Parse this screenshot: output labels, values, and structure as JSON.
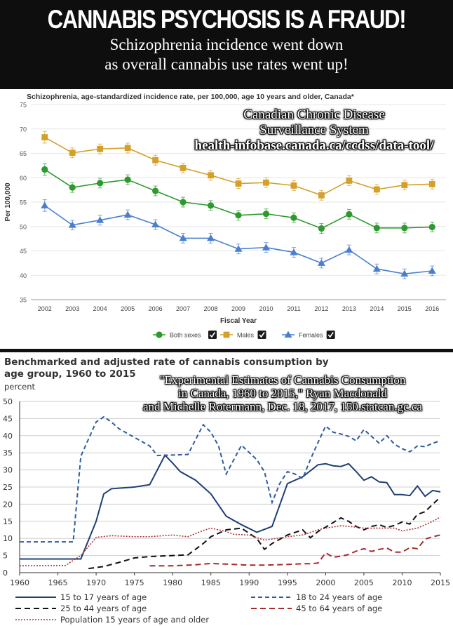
{
  "banner": {
    "headline": "CANNABIS PSYCHOSIS IS A FRAUD!",
    "subline_1": "Schizophrenia incidence went down",
    "subline_2": "as overall cannabis use rates went up!",
    "background": "#0e0e0e"
  },
  "chart1": {
    "source_caption_1": "Canadian Chronic Disease",
    "source_caption_2": "Surveillance System",
    "source_caption_3": "health-infobase.canada.ca/ccdss/data-tool/"
  },
  "chart2": {
    "source_caption_1": "\"Experimental Estimates of Cannabis Consumption",
    "source_caption_2": "in Canada, 1960 to 2015,\" Ryan Macdonald",
    "source_caption_3": "and Michelle Rotermann, Dec. 18, 2017, 150.statcan.gc.ca"
  },
  "chart_data": [
    {
      "type": "line",
      "title": "Schizophrenia, age-standardized incidence rate, per 100,000, age 10 years and older, Canada*",
      "xlabel": "Fiscal Year",
      "ylabel": "Per 100,000",
      "ylim": [
        35,
        75
      ],
      "yticks": [
        35,
        40,
        45,
        50,
        55,
        60,
        65,
        70,
        75
      ],
      "x": [
        "2002",
        "2003",
        "2004",
        "2005",
        "2006",
        "2007",
        "2008",
        "2009",
        "2010",
        "2011",
        "2012",
        "2013",
        "2014",
        "2015",
        "2016"
      ],
      "grid": "horizontal",
      "legend_position": "bottom",
      "series": [
        {
          "name": "Both sexes",
          "color": "#2e9a2e",
          "marker": "circle",
          "values": [
            61.7,
            58.0,
            58.9,
            59.6,
            57.3,
            55.0,
            54.3,
            52.3,
            52.6,
            51.8,
            49.6,
            52.5,
            49.7,
            49.7,
            49.9
          ]
        },
        {
          "name": "Males",
          "color": "#d4a02a",
          "marker": "square",
          "values": [
            68.3,
            65.1,
            65.9,
            66.1,
            63.6,
            62.0,
            60.5,
            58.8,
            59.0,
            58.4,
            56.4,
            59.4,
            57.6,
            58.5,
            58.7
          ]
        },
        {
          "name": "Females",
          "color": "#4a7fcf",
          "marker": "triangle",
          "values": [
            54.3,
            50.3,
            51.3,
            52.4,
            50.4,
            47.6,
            47.6,
            45.4,
            45.7,
            44.7,
            42.5,
            45.2,
            41.3,
            40.3,
            40.9
          ]
        }
      ],
      "error_half_width": [
        1.2,
        1.0,
        1.0,
        1.0,
        1.0,
        1.0,
        1.0,
        1.0,
        1.0,
        1.0,
        1.0,
        1.0,
        1.0,
        1.0,
        1.0
      ]
    },
    {
      "type": "line",
      "title": "Benchmarked and adjusted rate of cannabis consumption by age group, 1960 to 2015",
      "ylabel": "percent",
      "xlabel": "",
      "xlim": [
        1960,
        2015
      ],
      "ylim": [
        0,
        50
      ],
      "xticks": [
        1960,
        1965,
        1970,
        1975,
        1980,
        1985,
        1990,
        1995,
        2000,
        2005,
        2010,
        2015
      ],
      "yticks": [
        0,
        5,
        10,
        15,
        20,
        25,
        30,
        35,
        40,
        45,
        50
      ],
      "grid": "horizontal",
      "legend_position": "bottom",
      "series": [
        {
          "name": "15 to 17 years of age",
          "style": "solid",
          "color": "#1f3f73",
          "points": [
            [
              1960,
              4
            ],
            [
              1968,
              4
            ],
            [
              1970,
              15
            ],
            [
              1971,
              23
            ],
            [
              1972,
              24.5
            ],
            [
              1975,
              25
            ],
            [
              1977,
              25.7
            ],
            [
              1979,
              34.3
            ],
            [
              1980,
              32
            ],
            [
              1981,
              29.5
            ],
            [
              1983,
              27
            ],
            [
              1984,
              25
            ],
            [
              1985,
              23
            ],
            [
              1987,
              16.5
            ],
            [
              1989,
              14
            ],
            [
              1991,
              11.8
            ],
            [
              1993,
              13.5
            ],
            [
              1995,
              26
            ],
            [
              1997,
              28
            ],
            [
              1999,
              31.5
            ],
            [
              2000,
              31.8
            ],
            [
              2001,
              31.2
            ],
            [
              2002,
              31
            ],
            [
              2003,
              31.8
            ],
            [
              2004,
              29.5
            ],
            [
              2005,
              27
            ],
            [
              2006,
              28
            ],
            [
              2007,
              26.5
            ],
            [
              2008,
              26.3
            ],
            [
              2009,
              22.8
            ],
            [
              2010,
              22.8
            ],
            [
              2011,
              22.5
            ],
            [
              2012,
              25.3
            ],
            [
              2013,
              22.3
            ],
            [
              2014,
              24
            ],
            [
              2015,
              23.6
            ]
          ]
        },
        {
          "name": "18 to 24 years of age",
          "style": "dash-dot",
          "color": "#2e5d9e",
          "points": [
            [
              1960,
              9
            ],
            [
              1967,
              9
            ],
            [
              1968,
              34
            ],
            [
              1970,
              44
            ],
            [
              1971,
              45.5
            ],
            [
              1972,
              44
            ],
            [
              1973,
              42
            ],
            [
              1975,
              39.5
            ],
            [
              1977,
              37
            ],
            [
              1978,
              34.2
            ],
            [
              1982,
              34.5
            ],
            [
              1984,
              43.2
            ],
            [
              1985,
              41
            ],
            [
              1986,
              37
            ],
            [
              1987,
              28.8
            ],
            [
              1988,
              33
            ],
            [
              1989,
              37.2
            ],
            [
              1991,
              33
            ],
            [
              1992,
              29.5
            ],
            [
              1993,
              20.5
            ],
            [
              1994,
              26
            ],
            [
              1995,
              29.5
            ],
            [
              1996,
              28.8
            ],
            [
              1997,
              27.5
            ],
            [
              1998,
              33
            ],
            [
              1999,
              38
            ],
            [
              2000,
              42.8
            ],
            [
              2001,
              41
            ],
            [
              2002,
              40.5
            ],
            [
              2003,
              39.8
            ],
            [
              2004,
              38.5
            ],
            [
              2005,
              41.8
            ],
            [
              2006,
              39.8
            ],
            [
              2007,
              37.8
            ],
            [
              2008,
              40
            ],
            [
              2009,
              37.5
            ],
            [
              2010,
              36.2
            ],
            [
              2011,
              35.3
            ],
            [
              2012,
              37
            ],
            [
              2013,
              36.8
            ],
            [
              2014,
              37.8
            ],
            [
              2015,
              38.5
            ]
          ]
        },
        {
          "name": "25 to 44 years of age",
          "style": "dashed",
          "color": "#111111",
          "points": [
            [
              1969,
              1.2
            ],
            [
              1971,
              1.8
            ],
            [
              1973,
              3
            ],
            [
              1975,
              4.3
            ],
            [
              1977,
              4.7
            ],
            [
              1980,
              5
            ],
            [
              1982,
              5.2
            ],
            [
              1984,
              8.5
            ],
            [
              1985,
              10.5
            ],
            [
              1987,
              12.5
            ],
            [
              1989,
              13
            ],
            [
              1991,
              10
            ],
            [
              1992,
              6.8
            ],
            [
              1993,
              8.5
            ],
            [
              1995,
              11
            ],
            [
              1997,
              12.5
            ],
            [
              1998,
              10.2
            ],
            [
              1999,
              12
            ],
            [
              2000,
              13.3
            ],
            [
              2002,
              16
            ],
            [
              2003,
              15
            ],
            [
              2004,
              13.5
            ],
            [
              2005,
              12.5
            ],
            [
              2006,
              13.5
            ],
            [
              2007,
              14
            ],
            [
              2008,
              13.2
            ],
            [
              2009,
              13.8
            ],
            [
              2010,
              14.8
            ],
            [
              2011,
              14.2
            ],
            [
              2012,
              17
            ],
            [
              2013,
              17.8
            ],
            [
              2014,
              20
            ],
            [
              2015,
              22
            ]
          ]
        },
        {
          "name": "45 to 64 years of age",
          "style": "dashed",
          "color": "#a52a2a",
          "points": [
            [
              1977,
              2
            ],
            [
              1980,
              2
            ],
            [
              1983,
              2.3
            ],
            [
              1985,
              2.7
            ],
            [
              1987,
              2.5
            ],
            [
              1990,
              2.2
            ],
            [
              1992,
              2.2
            ],
            [
              1995,
              2.4
            ],
            [
              1997,
              2.6
            ],
            [
              1998,
              2.6
            ],
            [
              1999,
              2.8
            ],
            [
              2000,
              5.8
            ],
            [
              2001,
              4.5
            ],
            [
              2002,
              4.8
            ],
            [
              2003,
              5.3
            ],
            [
              2004,
              6.3
            ],
            [
              2005,
              7
            ],
            [
              2006,
              6.2
            ],
            [
              2007,
              6.8
            ],
            [
              2008,
              7.2
            ],
            [
              2009,
              6
            ],
            [
              2010,
              6
            ],
            [
              2011,
              7.3
            ],
            [
              2012,
              7
            ],
            [
              2013,
              9.8
            ],
            [
              2014,
              10.5
            ],
            [
              2015,
              11
            ]
          ]
        },
        {
          "name": "Population 15 years of age and older",
          "style": "dotted",
          "color": "#b03030",
          "points": [
            [
              1960,
              2
            ],
            [
              1966,
              2.1
            ],
            [
              1968,
              5
            ],
            [
              1970,
              10.3
            ],
            [
              1972,
              10.8
            ],
            [
              1975,
              10.5
            ],
            [
              1977,
              10.5
            ],
            [
              1980,
              11
            ],
            [
              1982,
              10.5
            ],
            [
              1984,
              12.3
            ],
            [
              1985,
              13
            ],
            [
              1987,
              12
            ],
            [
              1988,
              11.2
            ],
            [
              1990,
              11
            ],
            [
              1992,
              9.5
            ],
            [
              1993,
              9.8
            ],
            [
              1995,
              10.5
            ],
            [
              1997,
              11
            ],
            [
              1999,
              12.5
            ],
            [
              2000,
              13
            ],
            [
              2002,
              13.7
            ],
            [
              2004,
              13.3
            ],
            [
              2005,
              13
            ],
            [
              2007,
              13
            ],
            [
              2009,
              13
            ],
            [
              2010,
              12.2
            ],
            [
              2012,
              13
            ],
            [
              2014,
              15
            ],
            [
              2015,
              16.2
            ]
          ]
        }
      ]
    }
  ]
}
